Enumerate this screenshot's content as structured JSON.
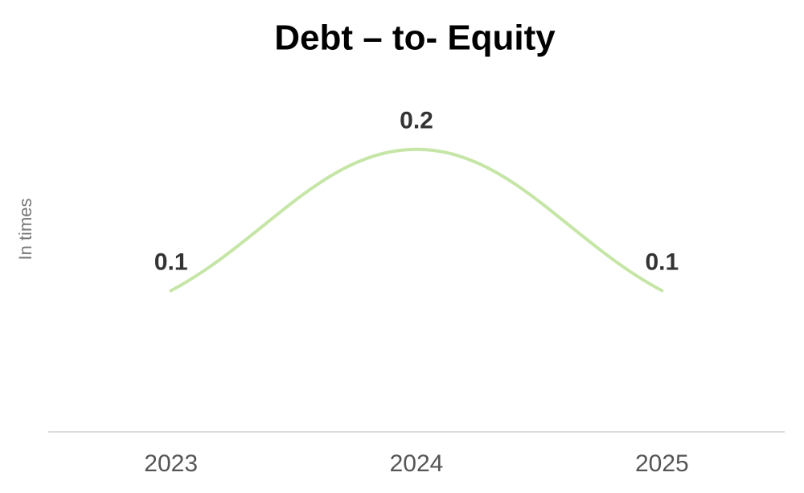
{
  "chart_data": {
    "type": "line",
    "title": "Debt – to- Equity",
    "y_label": "In times",
    "categories": [
      "2023",
      "2024",
      "2025"
    ],
    "series": [
      {
        "name": "Debt-to-Equity",
        "color": "#c5e6a6",
        "values": [
          0.1,
          0.2,
          0.1
        ]
      }
    ],
    "ylim": [
      0,
      0.25
    ],
    "smooth": true,
    "data_labels": true
  }
}
